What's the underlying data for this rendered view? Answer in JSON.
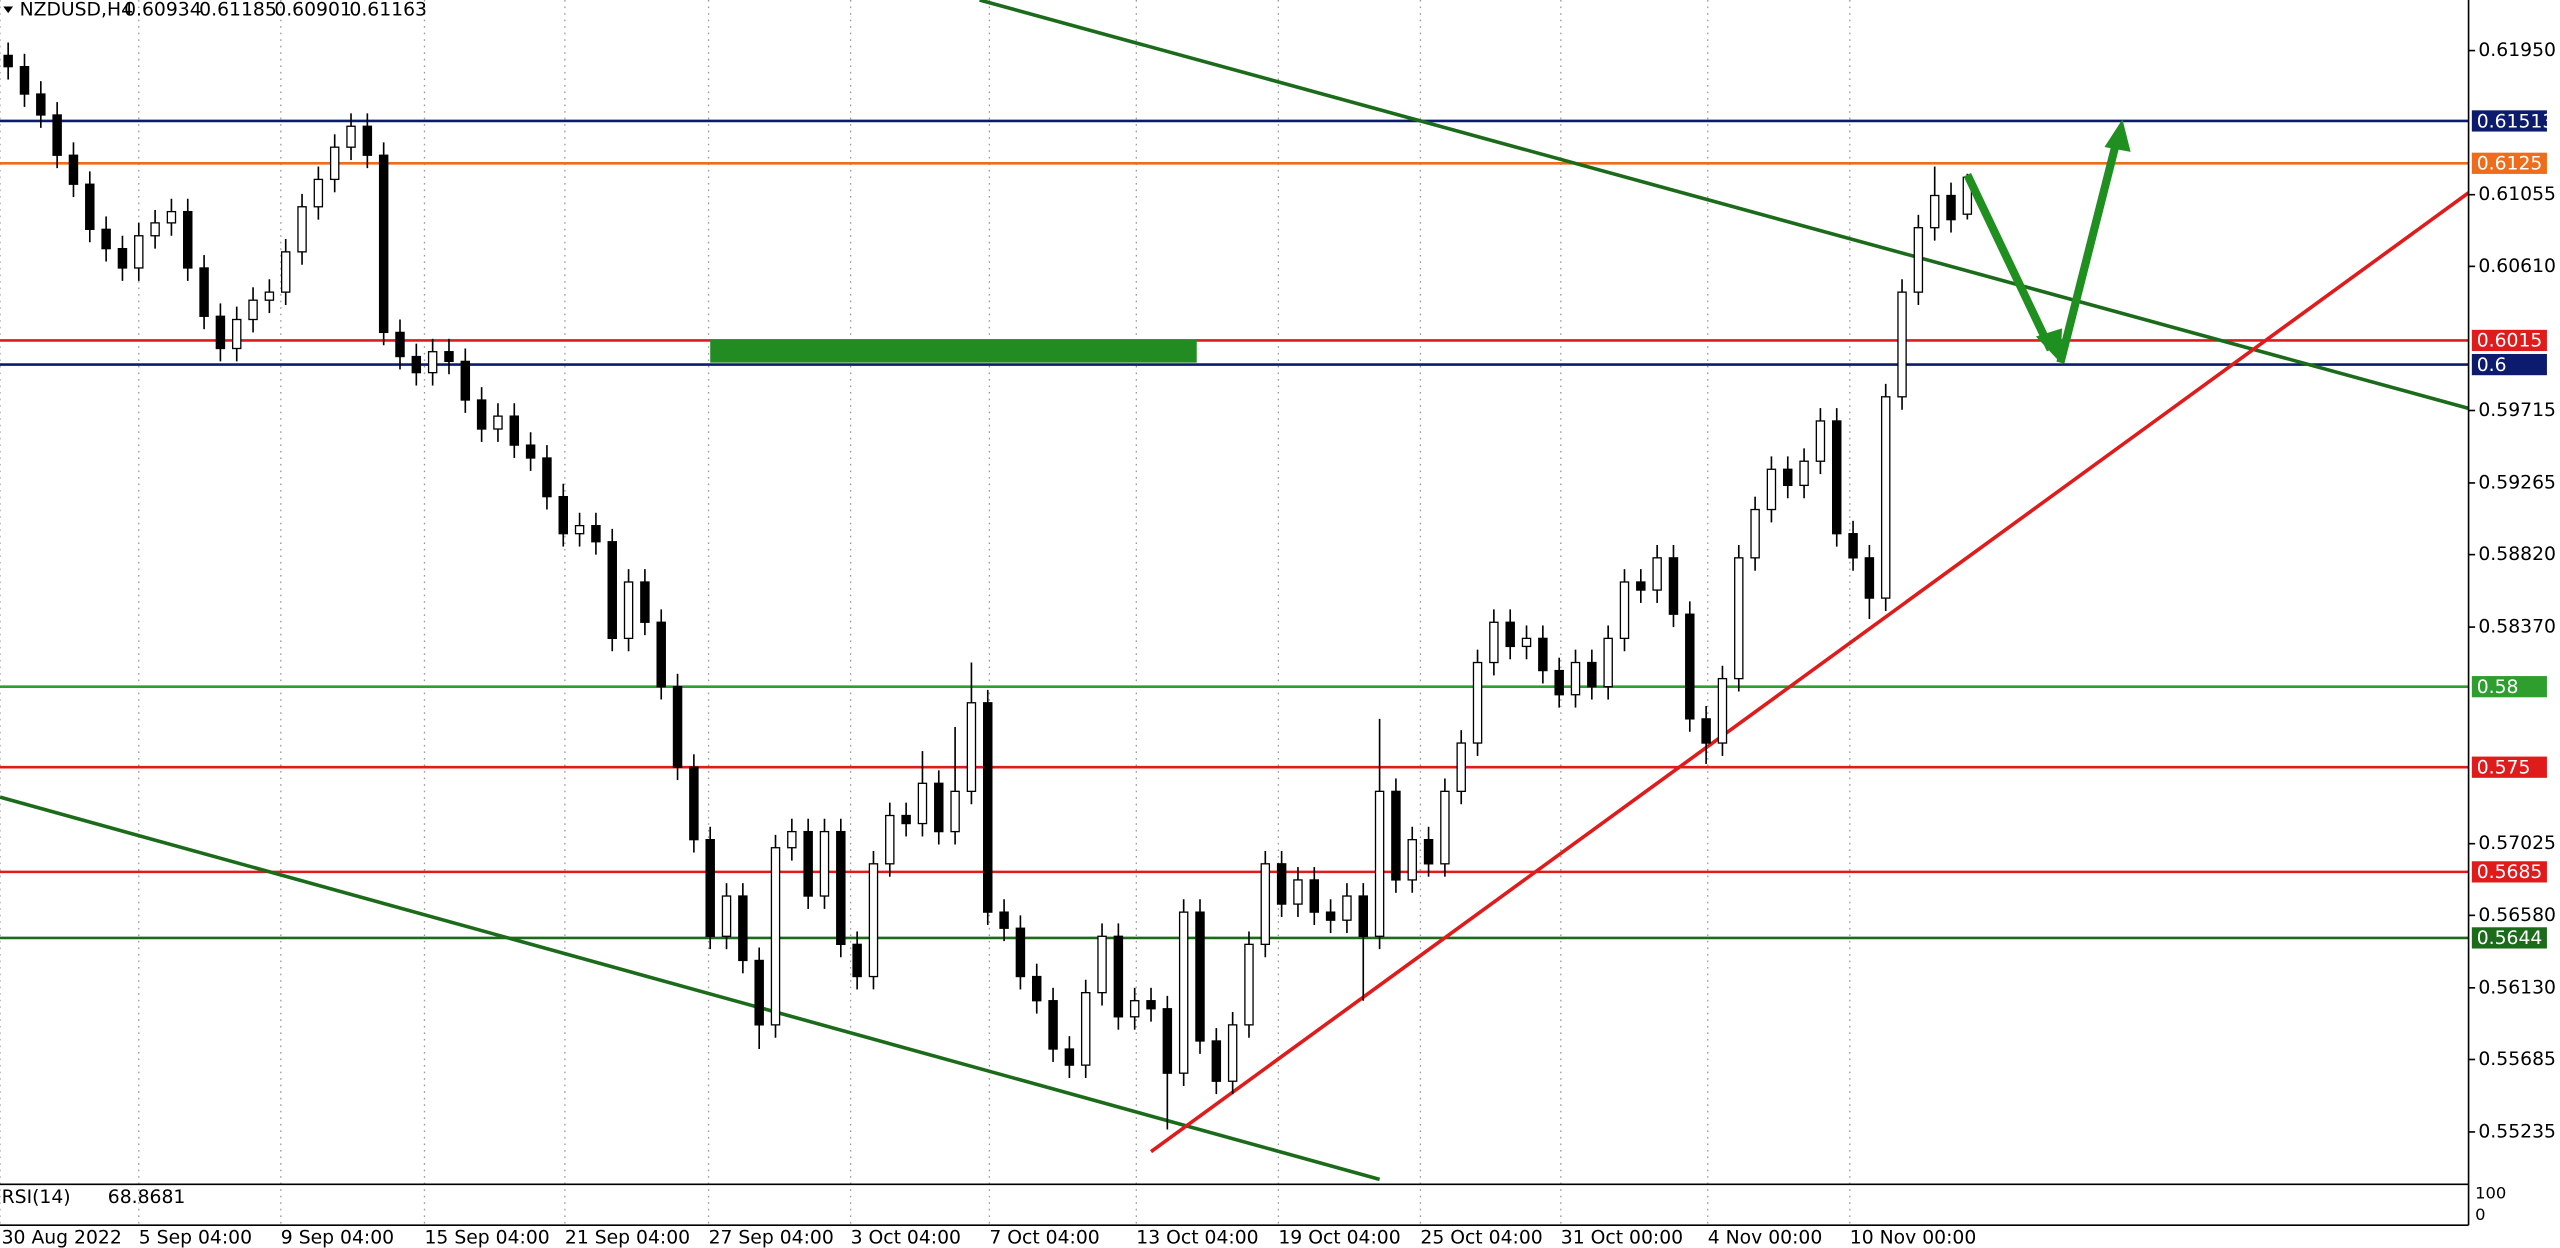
{
  "chart_data": {
    "type": "candlestick",
    "symbol": "NZDUSD,H4",
    "indicator": "RSI(14)",
    "indicator_value": 68.8681,
    "xlim": [
      -0.5,
      150.7
    ],
    "ylim": [
      0.5491,
      0.62264
    ],
    "xticks": [
      {
        "value": -0.5,
        "label": "30 Aug 2022"
      },
      {
        "value": 8,
        "label": "5 Sep 04:00"
      },
      {
        "value": 16.7,
        "label": "9 Sep 04:00"
      },
      {
        "value": 25.5,
        "label": "15 Sep 04:00"
      },
      {
        "value": 34.1,
        "label": "21 Sep 04:00"
      },
      {
        "value": 42.9,
        "label": "27 Sep 04:00"
      },
      {
        "value": 51.6,
        "label": "3 Oct 04:00"
      },
      {
        "value": 60.1,
        "label": "7 Oct 04:00"
      },
      {
        "value": 69.1,
        "label": "13 Oct 04:00"
      },
      {
        "value": 77.8,
        "label": "19 Oct 04:00"
      },
      {
        "value": 86.5,
        "label": "25 Oct 04:00"
      },
      {
        "value": 95.1,
        "label": "31 Oct 00:00"
      },
      {
        "value": 104.1,
        "label": "4 Nov 00:00"
      },
      {
        "value": 112.8,
        "label": "10 Nov 00:00"
      }
    ],
    "yticks": [
      {
        "value": 0.6195,
        "label": "0.61950"
      },
      {
        "value": 0.61055,
        "label": "0.61055"
      },
      {
        "value": 0.6061,
        "label": "0.60610"
      },
      {
        "value": 0.59715,
        "label": "0.59715"
      },
      {
        "value": 0.59265,
        "label": "0.59265"
      },
      {
        "value": 0.5882,
        "label": "0.58820"
      },
      {
        "value": 0.5837,
        "label": "0.58370"
      },
      {
        "value": 0.57025,
        "label": "0.57025"
      },
      {
        "value": 0.5658,
        "label": "0.56580"
      },
      {
        "value": 0.5613,
        "label": "0.56130"
      },
      {
        "value": 0.55685,
        "label": "0.55685"
      },
      {
        "value": 0.55235,
        "label": "0.55235"
      }
    ],
    "indicator_ticks": [
      100,
      0
    ],
    "levels": [
      {
        "value": 0.61513,
        "color": "#0d1b6e"
      },
      {
        "value": 0.6125,
        "color": "#ef6c1a"
      },
      {
        "value": 0.6015,
        "color": "#e01b1b"
      },
      {
        "value": 0.6,
        "color": "#0d1b6e"
      },
      {
        "value": 0.58,
        "color": "#2e9e2e"
      },
      {
        "value": 0.575,
        "color": "#e01b1b"
      },
      {
        "value": 0.5685,
        "color": "#e01b1b"
      },
      {
        "value": 0.5644,
        "color": "#1b6b1b"
      }
    ],
    "ohlc": [
      [
        0.6192,
        0.62,
        0.6177,
        0.6185
      ],
      [
        0.6185,
        0.6193,
        0.616,
        0.6168
      ],
      [
        0.6168,
        0.6176,
        0.6147,
        0.6155
      ],
      [
        0.6155,
        0.6163,
        0.6122,
        0.613
      ],
      [
        0.613,
        0.6138,
        0.6104,
        0.6112
      ],
      [
        0.6112,
        0.612,
        0.6076,
        0.6084
      ],
      [
        0.6084,
        0.6092,
        0.6064,
        0.6072
      ],
      [
        0.6072,
        0.608,
        0.6052,
        0.606
      ],
      [
        0.606,
        0.6088,
        0.6052,
        0.608
      ],
      [
        0.608,
        0.6096,
        0.6072,
        0.6088
      ],
      [
        0.6088,
        0.6103,
        0.608,
        0.6095
      ],
      [
        0.6095,
        0.6103,
        0.6052,
        0.606
      ],
      [
        0.606,
        0.6068,
        0.6022,
        0.603
      ],
      [
        0.603,
        0.6038,
        0.6002,
        0.601
      ],
      [
        0.601,
        0.6036,
        0.6002,
        0.6028
      ],
      [
        0.6028,
        0.6048,
        0.602,
        0.604
      ],
      [
        0.604,
        0.6053,
        0.6032,
        0.6045
      ],
      [
        0.6045,
        0.6078,
        0.6037,
        0.607
      ],
      [
        0.607,
        0.6106,
        0.6062,
        0.6098
      ],
      [
        0.6098,
        0.6123,
        0.609,
        0.6115
      ],
      [
        0.6115,
        0.6143,
        0.6107,
        0.6135
      ],
      [
        0.6135,
        0.6156,
        0.6127,
        0.6148
      ],
      [
        0.6148,
        0.6156,
        0.6122,
        0.613
      ],
      [
        0.613,
        0.6138,
        0.6012,
        0.602
      ],
      [
        0.602,
        0.6028,
        0.5997,
        0.6005
      ],
      [
        0.6005,
        0.6013,
        0.5987,
        0.5995
      ],
      [
        0.5995,
        0.6016,
        0.5987,
        0.6008
      ],
      [
        0.6008,
        0.6016,
        0.5994,
        0.6002
      ],
      [
        0.6002,
        0.601,
        0.597,
        0.5978
      ],
      [
        0.5978,
        0.5986,
        0.5952,
        0.596
      ],
      [
        0.596,
        0.5976,
        0.5952,
        0.5968
      ],
      [
        0.5968,
        0.5976,
        0.5942,
        0.595
      ],
      [
        0.595,
        0.5958,
        0.5934,
        0.5942
      ],
      [
        0.5942,
        0.595,
        0.591,
        0.5918
      ],
      [
        0.5918,
        0.5926,
        0.5887,
        0.5895
      ],
      [
        0.5895,
        0.5908,
        0.5887,
        0.59
      ],
      [
        0.59,
        0.5908,
        0.5882,
        0.589
      ],
      [
        0.589,
        0.5898,
        0.5822,
        0.583
      ],
      [
        0.583,
        0.5873,
        0.5822,
        0.5865
      ],
      [
        0.5865,
        0.5873,
        0.5832,
        0.584
      ],
      [
        0.584,
        0.5848,
        0.5792,
        0.58
      ],
      [
        0.58,
        0.5808,
        0.5742,
        0.575
      ],
      [
        0.575,
        0.5758,
        0.5697,
        0.5705
      ],
      [
        0.5705,
        0.5713,
        0.5637,
        0.5645
      ],
      [
        0.5645,
        0.5678,
        0.5637,
        0.567
      ],
      [
        0.567,
        0.5678,
        0.5622,
        0.563
      ],
      [
        0.563,
        0.5638,
        0.5575,
        0.559
      ],
      [
        0.559,
        0.5708,
        0.5582,
        0.57
      ],
      [
        0.57,
        0.5718,
        0.5692,
        0.571
      ],
      [
        0.571,
        0.5718,
        0.5662,
        0.567
      ],
      [
        0.567,
        0.5718,
        0.5662,
        0.571
      ],
      [
        0.571,
        0.5718,
        0.5632,
        0.564
      ],
      [
        0.564,
        0.5648,
        0.5612,
        0.562
      ],
      [
        0.562,
        0.5698,
        0.5612,
        0.569
      ],
      [
        0.569,
        0.5728,
        0.5682,
        0.572
      ],
      [
        0.572,
        0.5728,
        0.5707,
        0.5715
      ],
      [
        0.5715,
        0.576,
        0.5707,
        0.574
      ],
      [
        0.574,
        0.5748,
        0.5702,
        0.571
      ],
      [
        0.571,
        0.5775,
        0.5702,
        0.5735
      ],
      [
        0.5735,
        0.5815,
        0.5727,
        0.579
      ],
      [
        0.579,
        0.5798,
        0.5652,
        0.566
      ],
      [
        0.566,
        0.5668,
        0.5642,
        0.565
      ],
      [
        0.565,
        0.5658,
        0.5612,
        0.562
      ],
      [
        0.562,
        0.5628,
        0.5597,
        0.5605
      ],
      [
        0.5605,
        0.5613,
        0.5567,
        0.5575
      ],
      [
        0.5575,
        0.5583,
        0.5557,
        0.5565
      ],
      [
        0.5565,
        0.5618,
        0.5557,
        0.561
      ],
      [
        0.561,
        0.5653,
        0.5602,
        0.5645
      ],
      [
        0.5645,
        0.5653,
        0.5587,
        0.5595
      ],
      [
        0.5595,
        0.5613,
        0.5587,
        0.5605
      ],
      [
        0.5605,
        0.5613,
        0.5592,
        0.56
      ],
      [
        0.56,
        0.5608,
        0.5525,
        0.556
      ],
      [
        0.556,
        0.5668,
        0.5552,
        0.566
      ],
      [
        0.566,
        0.5668,
        0.5572,
        0.558
      ],
      [
        0.558,
        0.5588,
        0.5547,
        0.5555
      ],
      [
        0.5555,
        0.5598,
        0.5547,
        0.559
      ],
      [
        0.559,
        0.5648,
        0.5582,
        0.564
      ],
      [
        0.564,
        0.5698,
        0.5632,
        0.569
      ],
      [
        0.569,
        0.5698,
        0.5657,
        0.5665
      ],
      [
        0.5665,
        0.5688,
        0.5657,
        0.568
      ],
      [
        0.568,
        0.5688,
        0.5652,
        0.566
      ],
      [
        0.566,
        0.5668,
        0.5647,
        0.5655
      ],
      [
        0.5655,
        0.5678,
        0.5647,
        0.567
      ],
      [
        0.567,
        0.5678,
        0.5605,
        0.5645
      ],
      [
        0.5645,
        0.578,
        0.5637,
        0.5735
      ],
      [
        0.5735,
        0.5743,
        0.5672,
        0.568
      ],
      [
        0.568,
        0.5713,
        0.5672,
        0.5705
      ],
      [
        0.5705,
        0.5713,
        0.5682,
        0.569
      ],
      [
        0.569,
        0.5743,
        0.5682,
        0.5735
      ],
      [
        0.5735,
        0.5773,
        0.5727,
        0.5765
      ],
      [
        0.5765,
        0.5823,
        0.5757,
        0.5815
      ],
      [
        0.5815,
        0.5848,
        0.5807,
        0.584
      ],
      [
        0.584,
        0.5848,
        0.5817,
        0.5825
      ],
      [
        0.5825,
        0.5838,
        0.5817,
        0.583
      ],
      [
        0.583,
        0.5838,
        0.5802,
        0.581
      ],
      [
        0.581,
        0.5818,
        0.5787,
        0.5795
      ],
      [
        0.5795,
        0.5823,
        0.5787,
        0.5815
      ],
      [
        0.5815,
        0.5823,
        0.5792,
        0.58
      ],
      [
        0.58,
        0.5838,
        0.5792,
        0.583
      ],
      [
        0.583,
        0.5873,
        0.5822,
        0.5865
      ],
      [
        0.5865,
        0.5873,
        0.5852,
        0.586
      ],
      [
        0.586,
        0.5888,
        0.5852,
        0.588
      ],
      [
        0.588,
        0.5888,
        0.5837,
        0.5845
      ],
      [
        0.5845,
        0.5853,
        0.5772,
        0.578
      ],
      [
        0.578,
        0.5788,
        0.5752,
        0.5765
      ],
      [
        0.5765,
        0.5813,
        0.5757,
        0.5805
      ],
      [
        0.5805,
        0.5888,
        0.5797,
        0.588
      ],
      [
        0.588,
        0.5918,
        0.5872,
        0.591
      ],
      [
        0.591,
        0.5943,
        0.5902,
        0.5935
      ],
      [
        0.5935,
        0.5943,
        0.5917,
        0.5925
      ],
      [
        0.5925,
        0.5948,
        0.5917,
        0.594
      ],
      [
        0.594,
        0.5973,
        0.5932,
        0.5965
      ],
      [
        0.5965,
        0.5973,
        0.5887,
        0.5895
      ],
      [
        0.5895,
        0.5903,
        0.5872,
        0.588
      ],
      [
        0.588,
        0.5888,
        0.5842,
        0.5855
      ],
      [
        0.5855,
        0.5988,
        0.5847,
        0.598
      ],
      [
        0.598,
        0.6053,
        0.5972,
        0.6045
      ],
      [
        0.6045,
        0.6093,
        0.6037,
        0.6085
      ],
      [
        0.6085,
        0.6123,
        0.6077,
        0.6105
      ],
      [
        0.6105,
        0.6113,
        0.6082,
        0.609
      ],
      [
        0.60934,
        0.61185,
        0.60901,
        0.61163
      ]
    ]
  }
}
